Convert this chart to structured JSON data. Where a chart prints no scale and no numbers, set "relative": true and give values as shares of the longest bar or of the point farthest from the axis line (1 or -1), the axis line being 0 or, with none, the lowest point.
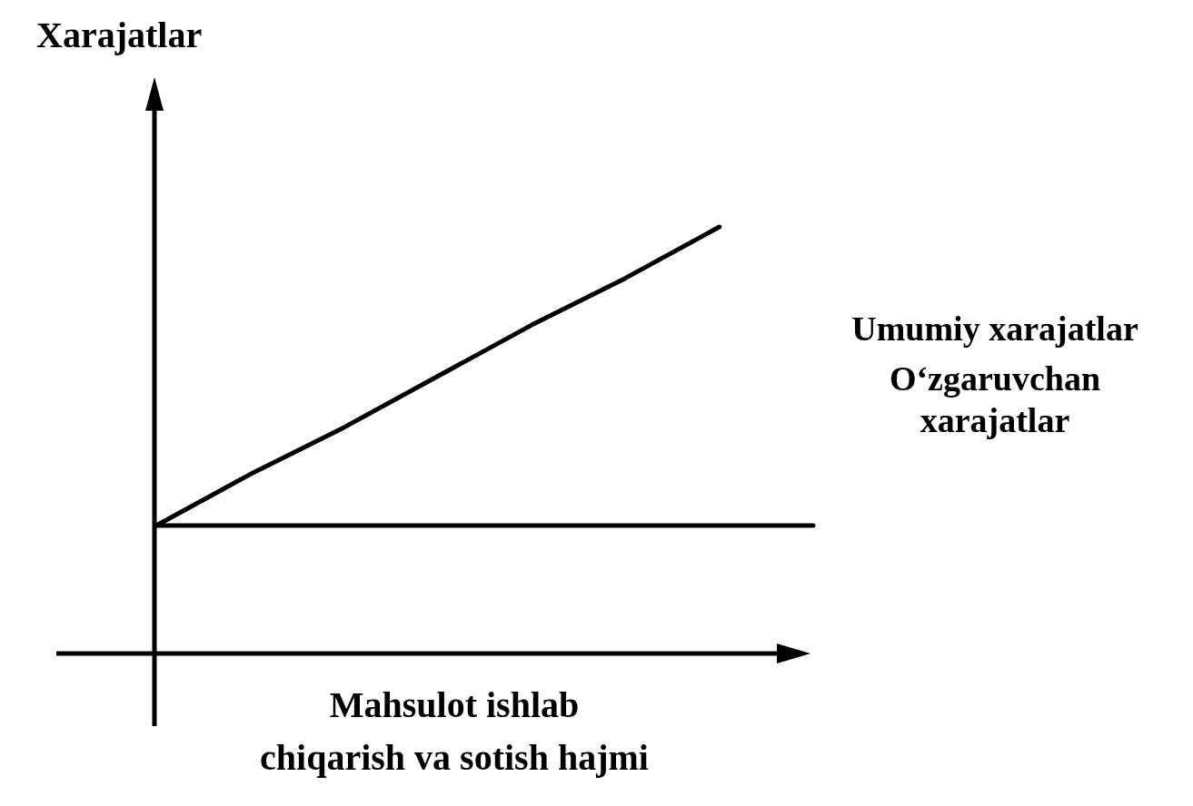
{
  "chart_data": {
    "type": "line",
    "relative": true,
    "xlabel": "Mahsulot ishlab chiqarish va sotish hajmi",
    "ylabel": "Xarajatlar",
    "categories": [
      null,
      null,
      null,
      null,
      null,
      null,
      null,
      null
    ],
    "legend": false,
    "marker": "none",
    "line_style": "solid",
    "series": [
      {
        "name": "Umumiy xarajatlar",
        "color": "#000000",
        "values": [
          0.3,
          0.42,
          0.53,
          0.65,
          0.77,
          0.88,
          1,
          null
        ]
      },
      {
        "name": "O‘zgaruvchan xarajatlar",
        "color": "#000000",
        "values": [
          0.3,
          0.3,
          0.3,
          0.3,
          0.3,
          0.3,
          0.3,
          0.3
        ]
      }
    ]
  }
}
